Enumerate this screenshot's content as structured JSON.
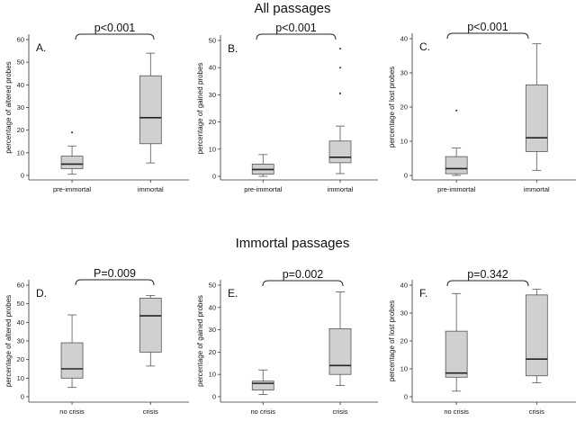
{
  "titles": {
    "top": "All passages",
    "bottom": "Immortal passages"
  },
  "chart_data": [
    {
      "type": "boxplot",
      "panel": "A.",
      "section": "All passages",
      "ylabel": "percentage of altered probes",
      "ylim": [
        0,
        60
      ],
      "yticks": [
        0,
        10,
        20,
        30,
        40,
        50,
        60
      ],
      "categories": [
        "pre-immortal",
        "immortal"
      ],
      "boxes": [
        {
          "min": 0.5,
          "q1": 3,
          "median": 5,
          "q3": 8.5,
          "max": 13,
          "outliers": [
            19
          ]
        },
        {
          "min": 5.5,
          "q1": 14,
          "median": 25.5,
          "q3": 44,
          "max": 54,
          "outliers": []
        }
      ],
      "annotation": "p<0.001"
    },
    {
      "type": "boxplot",
      "panel": "B.",
      "section": "All passages",
      "ylabel": "percentage of gained probes",
      "ylim": [
        0,
        50
      ],
      "yticks": [
        0,
        10,
        20,
        30,
        40,
        50
      ],
      "categories": [
        "pre-immortal",
        "immortal"
      ],
      "boxes": [
        {
          "min": 0,
          "q1": 0.8,
          "median": 2.5,
          "q3": 4.5,
          "max": 8,
          "outliers": []
        },
        {
          "min": 1,
          "q1": 5,
          "median": 7,
          "q3": 13,
          "max": 18.5,
          "outliers": [
            30.5,
            40,
            47
          ]
        }
      ],
      "annotation": "p<0.001"
    },
    {
      "type": "boxplot",
      "panel": "C.",
      "section": "All passages",
      "ylabel": "percentage of lost probes",
      "ylim": [
        0,
        40
      ],
      "yticks": [
        0,
        10,
        20,
        30,
        40
      ],
      "categories": [
        "pre-immortal",
        "immortal"
      ],
      "boxes": [
        {
          "min": 0,
          "q1": 0.5,
          "median": 2,
          "q3": 5.5,
          "max": 8,
          "outliers": [
            19
          ]
        },
        {
          "min": 1.5,
          "q1": 7,
          "median": 11,
          "q3": 26.5,
          "max": 38.5,
          "outliers": []
        }
      ],
      "annotation": "p<0.001"
    },
    {
      "type": "boxplot",
      "panel": "D.",
      "section": "Immortal passages",
      "ylabel": "percentage of altered probes",
      "ylim": [
        0,
        60
      ],
      "yticks": [
        0,
        10,
        20,
        30,
        40,
        50,
        60
      ],
      "categories": [
        "no crisis",
        "crisis"
      ],
      "boxes": [
        {
          "min": 5,
          "q1": 10,
          "median": 15,
          "q3": 29,
          "max": 44,
          "outliers": []
        },
        {
          "min": 16.5,
          "q1": 24,
          "median": 43.5,
          "q3": 53,
          "max": 54.5,
          "outliers": []
        }
      ],
      "annotation": "P=0.009"
    },
    {
      "type": "boxplot",
      "panel": "E.",
      "section": "Immortal passages",
      "ylabel": "percentage of gained probes",
      "ylim": [
        0,
        50
      ],
      "yticks": [
        0,
        10,
        20,
        30,
        40,
        50
      ],
      "categories": [
        "no crisis",
        "crisis"
      ],
      "boxes": [
        {
          "min": 1,
          "q1": 3,
          "median": 6,
          "q3": 7,
          "max": 12,
          "outliers": []
        },
        {
          "min": 5,
          "q1": 10,
          "median": 14,
          "q3": 30.5,
          "max": 47,
          "outliers": []
        }
      ],
      "annotation": "p=0.002"
    },
    {
      "type": "boxplot",
      "panel": "F.",
      "section": "Immortal passages",
      "ylabel": "percentage of lost probes",
      "ylim": [
        0,
        40
      ],
      "yticks": [
        0,
        10,
        20,
        30,
        40
      ],
      "categories": [
        "no crisis",
        "crisis"
      ],
      "boxes": [
        {
          "min": 2,
          "q1": 7,
          "median": 8.5,
          "q3": 23.5,
          "max": 37,
          "outliers": []
        },
        {
          "min": 5,
          "q1": 7.5,
          "median": 13.5,
          "q3": 36.5,
          "max": 38.5,
          "outliers": []
        }
      ],
      "annotation": "p=0.342"
    }
  ]
}
